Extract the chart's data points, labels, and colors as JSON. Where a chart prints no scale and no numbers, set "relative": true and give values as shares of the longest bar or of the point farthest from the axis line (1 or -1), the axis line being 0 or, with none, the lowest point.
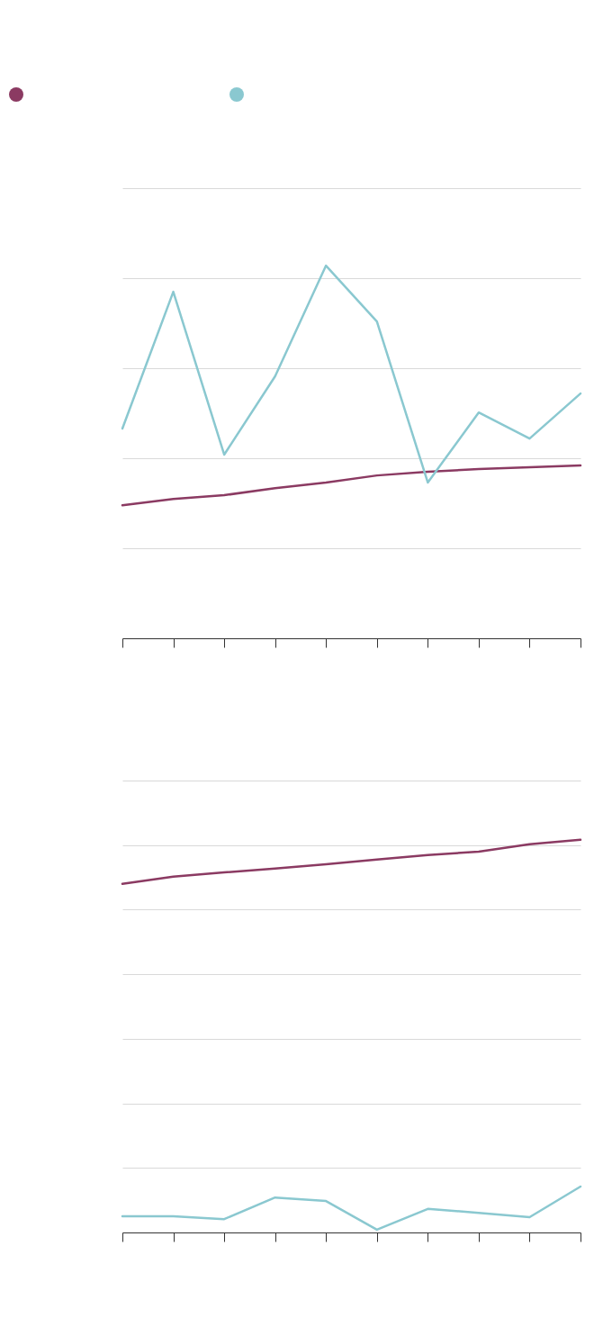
{
  "chart_data": [
    {
      "type": "line",
      "relative": true,
      "grid": "y",
      "categories": [
        null,
        null,
        null,
        null,
        null,
        null,
        null,
        null,
        null,
        null
      ],
      "series": [
        {
          "color": "#8b3a62",
          "values": [
            0.357,
            0.374,
            0.384,
            0.403,
            0.418,
            0.437,
            0.447,
            0.454,
            0.459,
            0.464
          ]
        },
        {
          "color": "#8ac8d0",
          "values": [
            0.563,
            0.93,
            0.493,
            0.703,
            1,
            0.85,
            0.418,
            0.606,
            0.536,
            0.657
          ]
        }
      ]
    },
    {
      "type": "line",
      "relative": true,
      "grid": "y",
      "categories": [
        null,
        null,
        null,
        null,
        null,
        null,
        null,
        null,
        null,
        null
      ],
      "series": [
        {
          "color": "#8b3a62",
          "values": [
            0.888,
            0.906,
            0.917,
            0.927,
            0.938,
            0.95,
            0.961,
            0.97,
            0.989,
            1
          ]
        },
        {
          "color": "#8ac8d0",
          "values": [
            0.041,
            0.041,
            0.034,
            0.089,
            0.08,
            0.007,
            0.06,
            0.05,
            0.039,
            0.117
          ]
        }
      ]
    }
  ]
}
